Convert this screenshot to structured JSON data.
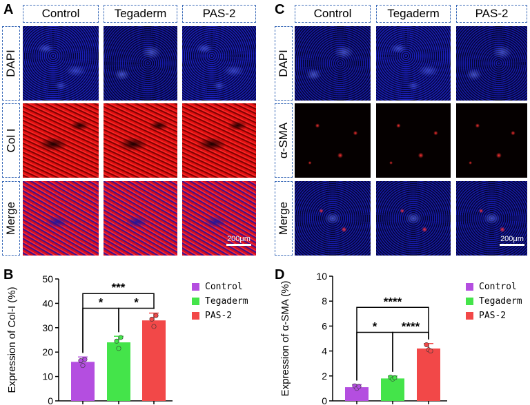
{
  "panels": {
    "a": "A",
    "b": "B",
    "c": "C",
    "d": "D"
  },
  "micrographs": {
    "columns": [
      "Control",
      "Tegaderm",
      "PAS-2"
    ],
    "rows_left": [
      "DAPI",
      "Col I",
      "Merge"
    ],
    "rows_right": [
      "DAPI",
      "α-SMA",
      "Merge"
    ],
    "scale_bar": "200μm"
  },
  "legend": [
    {
      "label": "Control",
      "color": "#b44ee0"
    },
    {
      "label": "Tegaderm",
      "color": "#44e44a"
    },
    {
      "label": "PAS-2",
      "color": "#f24848"
    }
  ],
  "chart_data": [
    {
      "type": "bar",
      "categories": [
        "Control",
        "Tegaderm",
        "PAS-2"
      ],
      "values": [
        16,
        24,
        33
      ],
      "errors": [
        2,
        2.5,
        3
      ],
      "points": [
        [
          16.5,
          14.5,
          17
        ],
        [
          24.5,
          21.5,
          26
        ],
        [
          33.5,
          30.5,
          35
        ]
      ],
      "colors": [
        "#b44ee0",
        "#44e44a",
        "#f24848"
      ],
      "ylabel": "Expression of Col-I (%)",
      "ylim": [
        0,
        50
      ],
      "yticks": [
        0,
        10,
        20,
        30,
        40,
        50
      ],
      "significance": [
        {
          "from": 0,
          "to": 1,
          "label": "*",
          "y": 38
        },
        {
          "from": 1,
          "to": 2,
          "label": "*",
          "y": 38
        },
        {
          "from": 0,
          "to": 2,
          "label": "***",
          "y": 44
        }
      ]
    },
    {
      "type": "bar",
      "categories": [
        "Control",
        "Tegaderm",
        "PAS-2"
      ],
      "values": [
        1.1,
        1.8,
        4.2
      ],
      "errors": [
        0.2,
        0.2,
        0.4
      ],
      "points": [
        [
          1.2,
          1.0,
          1.15
        ],
        [
          1.9,
          1.75,
          1.85
        ],
        [
          4.5,
          4.1,
          4.0
        ]
      ],
      "colors": [
        "#b44ee0",
        "#44e44a",
        "#f24848"
      ],
      "ylabel": "Expression of α-SMA (%)",
      "ylim": [
        0,
        10
      ],
      "yticks": [
        0,
        2,
        4,
        6,
        8,
        10
      ],
      "significance": [
        {
          "from": 0,
          "to": 1,
          "label": "*",
          "y": 5.5
        },
        {
          "from": 1,
          "to": 2,
          "label": "****",
          "y": 5.5
        },
        {
          "from": 0,
          "to": 2,
          "label": "****",
          "y": 7.5
        }
      ]
    }
  ]
}
